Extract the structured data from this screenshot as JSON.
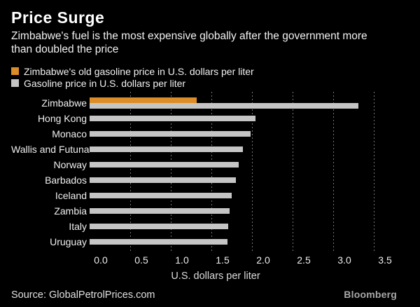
{
  "header": {
    "title": "Price Surge",
    "subtitle_lines": [
      "Zimbabwe's fuel is the most expensive globally after the government more",
      "than doubled the price"
    ]
  },
  "legend": {
    "items": [
      {
        "label": "Zimbabwe's old gasoline price in U.S. dollars per liter",
        "color": "#DD8D28"
      },
      {
        "label": "Gasoline price in U.S. dollars per liter",
        "color": "#C5C5C5"
      }
    ]
  },
  "chart_data": {
    "type": "bar",
    "orientation": "horizontal",
    "title": "Price Surge",
    "xlabel": "U.S. dollars per liter",
    "xlim": [
      0,
      3.5
    ],
    "xticks": [
      0,
      0.5,
      1,
      1.5,
      2,
      2.5,
      3,
      3.5
    ],
    "grid": "dotted-vertical",
    "legend_position": "top-left",
    "background": "#000000",
    "categories": [
      "Zimbabwe",
      "Hong Kong",
      "Monaco",
      "Wallis and Futuna",
      "Norway",
      "Barbados",
      "Iceland",
      "Zambia",
      "Italy",
      "Uruguay"
    ],
    "series": [
      {
        "name": "Zimbabwe's old gasoline price in U.S. dollars per liter",
        "color": "#DD8D28",
        "values": [
          1.32,
          null,
          null,
          null,
          null,
          null,
          null,
          null,
          null,
          null
        ]
      },
      {
        "name": "Gasoline price in U.S. dollars per liter",
        "color": "#C5C5C5",
        "values": [
          3.31,
          2.04,
          1.98,
          1.89,
          1.84,
          1.8,
          1.75,
          1.72,
          1.71,
          1.7
        ]
      }
    ]
  },
  "footer": {
    "source": "Source: GlobalPetrolPrices.com",
    "brand": "Bloomberg"
  }
}
